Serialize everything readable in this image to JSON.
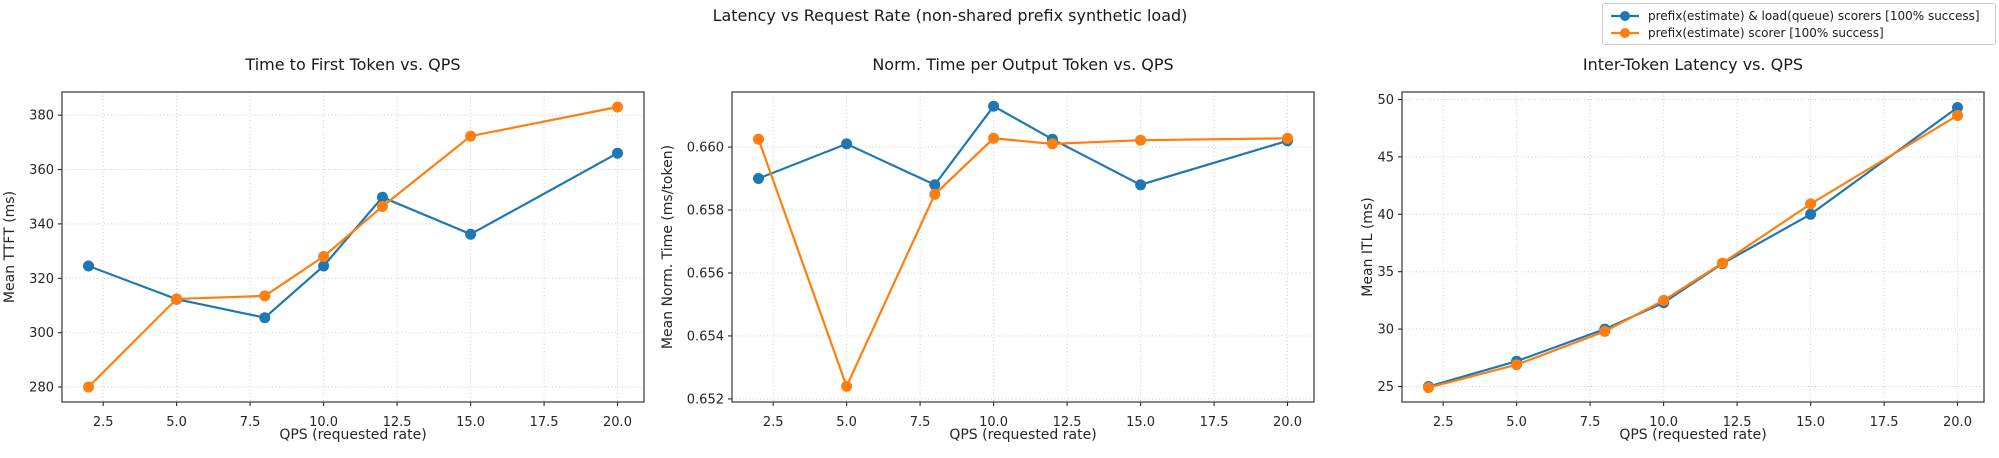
{
  "figure": {
    "title": "Latency vs Request Rate (non-shared prefix synthetic load)"
  },
  "legend": {
    "items": [
      {
        "label": "prefix(estimate) & load(queue) scorers [100% success]",
        "color": "#1f77b4"
      },
      {
        "label": "prefix(estimate) scorer [100% success]",
        "color": "#ff7f0e"
      }
    ]
  },
  "chart_data": [
    {
      "type": "line",
      "title": "Time to First Token vs. QPS",
      "xlabel": "QPS (requested rate)",
      "ylabel": "Mean TTFT (ms)",
      "grid": true,
      "legend_position": "figure-top-right",
      "x": [
        2,
        5,
        8,
        10,
        12,
        15,
        20
      ],
      "xticks": [
        2.5,
        5.0,
        7.5,
        10.0,
        12.5,
        15.0,
        17.5,
        20.0
      ],
      "xlim": [
        1.1,
        20.9
      ],
      "yticks": [
        280,
        300,
        320,
        340,
        360,
        380
      ],
      "ylim": [
        274.5,
        388.5
      ],
      "ytick_decimals": 0,
      "series": [
        {
          "name": "prefix(estimate) & load(queue) scorers [100% success]",
          "color": "#1f77b4",
          "values": [
            324.5,
            312.3,
            305.5,
            324.5,
            349.8,
            336.2,
            366.0
          ]
        },
        {
          "name": "prefix(estimate) scorer [100% success]",
          "color": "#ff7f0e",
          "values": [
            280.0,
            312.4,
            313.5,
            328.0,
            346.4,
            372.3,
            383.0
          ]
        }
      ]
    },
    {
      "type": "line",
      "title": "Norm. Time per Output Token vs. QPS",
      "xlabel": "QPS (requested rate)",
      "ylabel": "Mean Norm. Time (ms/token)",
      "grid": true,
      "x": [
        2,
        5,
        8,
        10,
        12,
        15,
        20
      ],
      "xticks": [
        2.5,
        5.0,
        7.5,
        10.0,
        12.5,
        15.0,
        17.5,
        20.0
      ],
      "xlim": [
        1.1,
        20.9
      ],
      "yticks": [
        0.652,
        0.654,
        0.656,
        0.658,
        0.66
      ],
      "ylim": [
        0.6519,
        0.66175
      ],
      "ytick_decimals": 3,
      "series": [
        {
          "name": "prefix(estimate) & load(queue) scorers [100% success]",
          "color": "#1f77b4",
          "values": [
            0.659,
            0.6601,
            0.6588,
            0.6613,
            0.66025,
            0.6588,
            0.6602
          ]
        },
        {
          "name": "prefix(estimate) scorer [100% success]",
          "color": "#ff7f0e",
          "values": [
            0.66025,
            0.6524,
            0.6585,
            0.66028,
            0.6601,
            0.66022,
            0.66028
          ]
        }
      ]
    },
    {
      "type": "line",
      "title": "Inter-Token Latency vs. QPS",
      "xlabel": "QPS (requested rate)",
      "ylabel": "Mean ITL (ms)",
      "grid": true,
      "x": [
        2,
        5,
        8,
        10,
        12,
        15,
        20
      ],
      "xticks": [
        2.5,
        5.0,
        7.5,
        10.0,
        12.5,
        15.0,
        17.5,
        20.0
      ],
      "xlim": [
        1.1,
        20.9
      ],
      "yticks": [
        25,
        30,
        35,
        40,
        45,
        50
      ],
      "ylim": [
        23.65,
        50.65
      ],
      "ytick_decimals": 0,
      "series": [
        {
          "name": "prefix(estimate) & load(queue) scorers [100% success]",
          "color": "#1f77b4",
          "values": [
            25.0,
            27.2,
            30.0,
            32.3,
            35.7,
            40.0,
            49.3
          ]
        },
        {
          "name": "prefix(estimate) scorer [100% success]",
          "color": "#ff7f0e",
          "values": [
            24.9,
            26.9,
            29.8,
            32.5,
            35.75,
            40.9,
            48.6
          ]
        }
      ]
    }
  ]
}
